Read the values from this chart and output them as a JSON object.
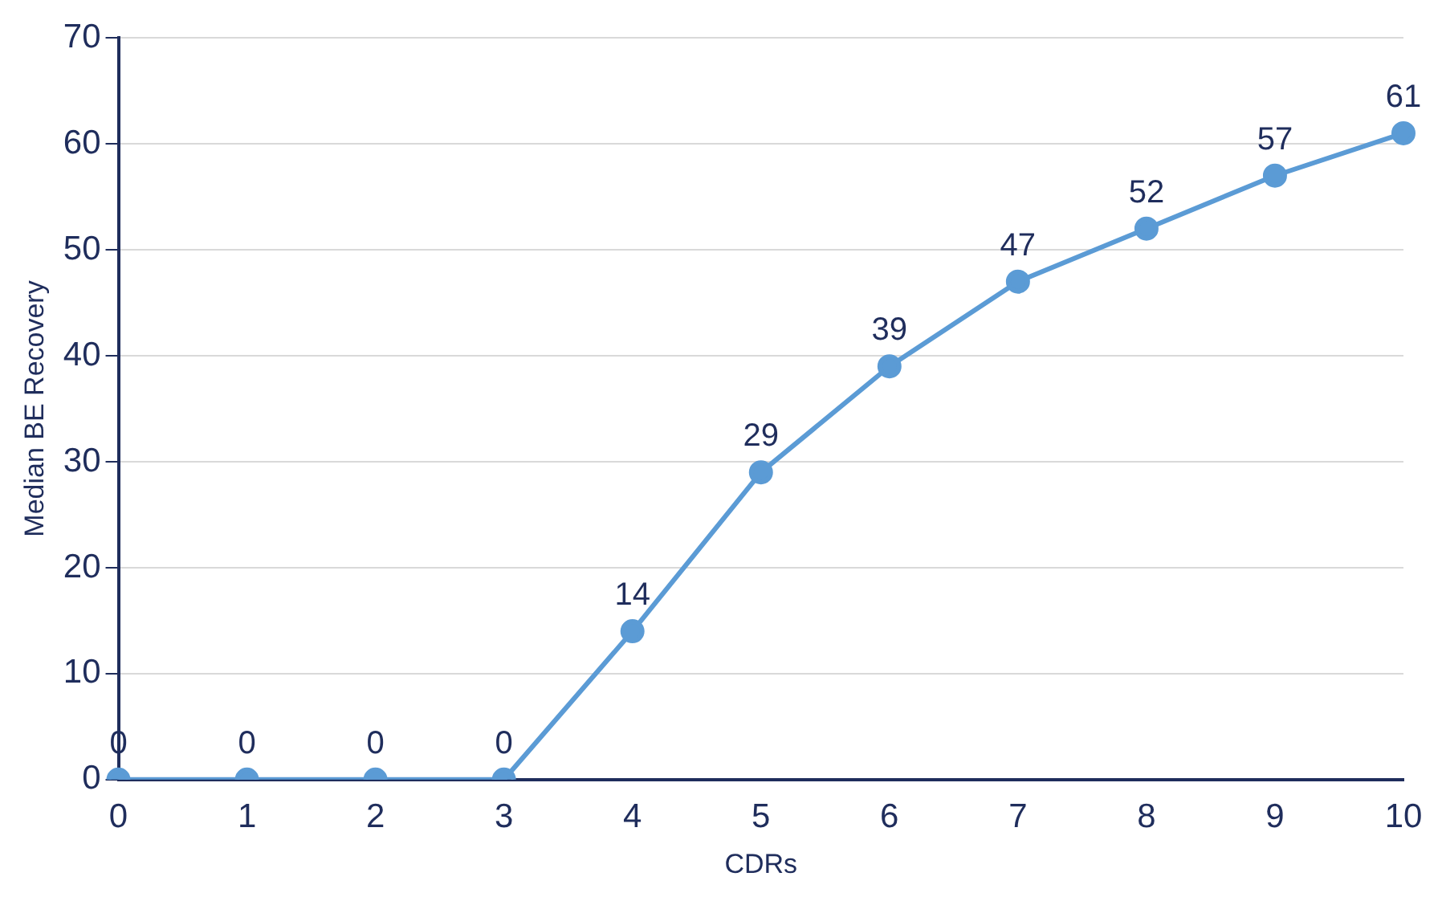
{
  "chart_data": {
    "type": "line",
    "xlabel": "CDRs",
    "ylabel": "Median BE Recovery",
    "categories": [
      "0",
      "1",
      "2",
      "3",
      "4",
      "5",
      "6",
      "7",
      "8",
      "9",
      "10"
    ],
    "series": [
      {
        "color": "#5b9bd5",
        "values": [
          0,
          0,
          0,
          0,
          14,
          29,
          39,
          47,
          52,
          57,
          61
        ]
      }
    ],
    "ylim": [
      0,
      70
    ],
    "yticks": [
      0,
      10,
      20,
      30,
      40,
      50,
      60,
      70
    ],
    "grid": "y",
    "marker": "circle",
    "line_style": "solid",
    "data_labels": true,
    "legend": false
  }
}
